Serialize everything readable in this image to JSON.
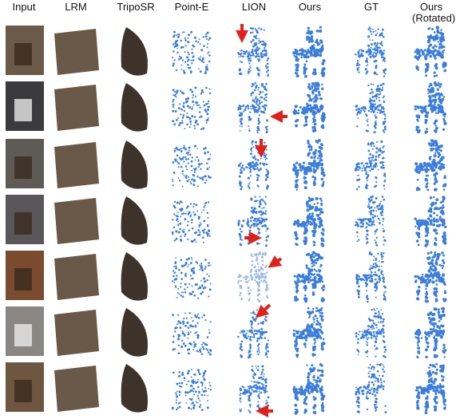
{
  "header": {
    "columns": [
      "Input",
      "LRM",
      "TripoSR",
      "Point-E",
      "LION",
      "Ours",
      "GT",
      "Ours (Rotated)"
    ]
  }
}
